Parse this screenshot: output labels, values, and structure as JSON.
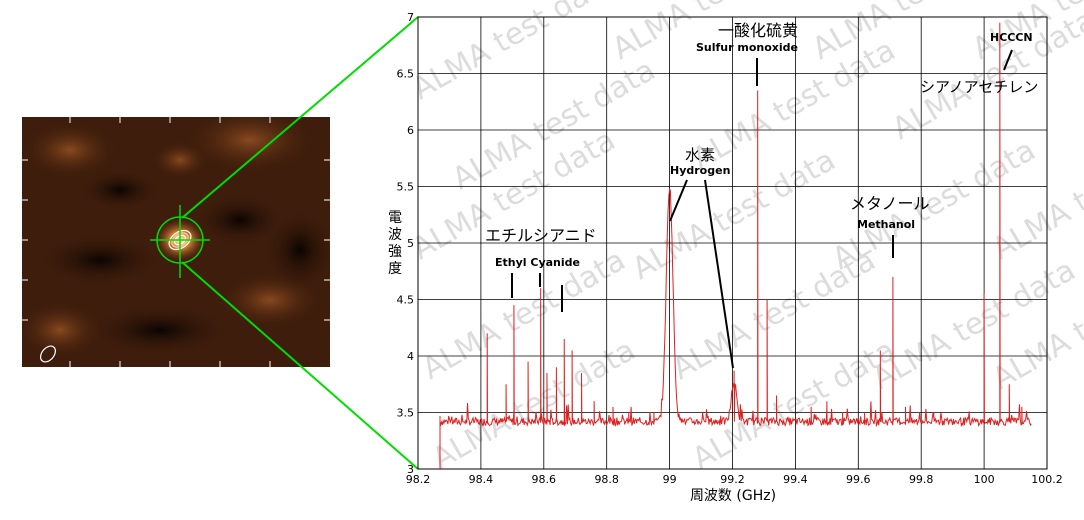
{
  "watermark": "ALMA test data",
  "colors": {
    "spectrum": "#e02020",
    "zoom_lines": "#00dd00",
    "contour": "#ffffff",
    "grid": "#000000"
  },
  "image_panel": {
    "crosshair_color": "#00dd00"
  },
  "chart_data": {
    "type": "line",
    "title": "",
    "xlabel": "周波数 (GHz)",
    "ylabel": "電波強度",
    "xlim": [
      98.2,
      100.2
    ],
    "ylim": [
      3,
      7
    ],
    "x_ticks": [
      "98.2",
      "98.4",
      "98.6",
      "98.8",
      "99",
      "99.2",
      "99.4",
      "99.6",
      "99.8",
      "100",
      "100.2"
    ],
    "y_ticks": [
      "3",
      "3.5",
      "4",
      "4.5",
      "5",
      "5.5",
      "6",
      "6.5",
      "7"
    ],
    "grid": true,
    "baseline": 3.42,
    "spectrum_range": [
      98.27,
      100.15
    ],
    "lines": [
      {
        "x": 98.42,
        "y": 4.2
      },
      {
        "x": 98.48,
        "y": 3.75
      },
      {
        "x": 98.505,
        "y": 4.45
      },
      {
        "x": 98.55,
        "y": 3.95
      },
      {
        "x": 98.59,
        "y": 4.6
      },
      {
        "x": 98.61,
        "y": 3.85
      },
      {
        "x": 98.64,
        "y": 3.9
      },
      {
        "x": 98.665,
        "y": 4.15
      },
      {
        "x": 98.69,
        "y": 4.05
      },
      {
        "x": 98.72,
        "y": 3.85
      },
      {
        "x": 98.76,
        "y": 3.6
      },
      {
        "x": 98.82,
        "y": 3.55
      },
      {
        "x": 98.87,
        "y": 3.5
      },
      {
        "x": 98.95,
        "y": 3.5
      },
      {
        "x": 99.205,
        "y": 3.87
      },
      {
        "x": 99.28,
        "y": 6.35
      },
      {
        "x": 99.31,
        "y": 4.5
      },
      {
        "x": 99.34,
        "y": 3.65
      },
      {
        "x": 99.45,
        "y": 3.55
      },
      {
        "x": 99.5,
        "y": 3.6
      },
      {
        "x": 99.55,
        "y": 3.5
      },
      {
        "x": 99.62,
        "y": 3.5
      },
      {
        "x": 99.67,
        "y": 4.05
      },
      {
        "x": 99.71,
        "y": 4.7
      },
      {
        "x": 99.75,
        "y": 3.55
      },
      {
        "x": 99.84,
        "y": 3.5
      },
      {
        "x": 100.0,
        "y": 4.55
      },
      {
        "x": 100.05,
        "y": 6.95
      },
      {
        "x": 100.08,
        "y": 3.75
      },
      {
        "x": 100.12,
        "y": 3.55
      }
    ],
    "broad_features": [
      {
        "x": 99.0,
        "y": 5.5,
        "width": 0.015
      }
    ],
    "annotations": [
      {
        "jp": "エチルシアニド",
        "en": "Ethyl Cyanide",
        "x": 98.58,
        "y": 5.0
      },
      {
        "jp": "水素",
        "en": "Hydrogen",
        "x": 99.1,
        "y": 5.7
      },
      {
        "jp": "一酸化硫黄",
        "en": "Sulfur monoxide",
        "x": 99.28,
        "y": 6.8
      },
      {
        "jp": "メタノール",
        "en": "Methanol",
        "x": 99.71,
        "y": 5.25
      },
      {
        "jp": "シアノアセチレン",
        "en": "HCCCN",
        "x": 100.05,
        "y": 6.5
      }
    ]
  }
}
